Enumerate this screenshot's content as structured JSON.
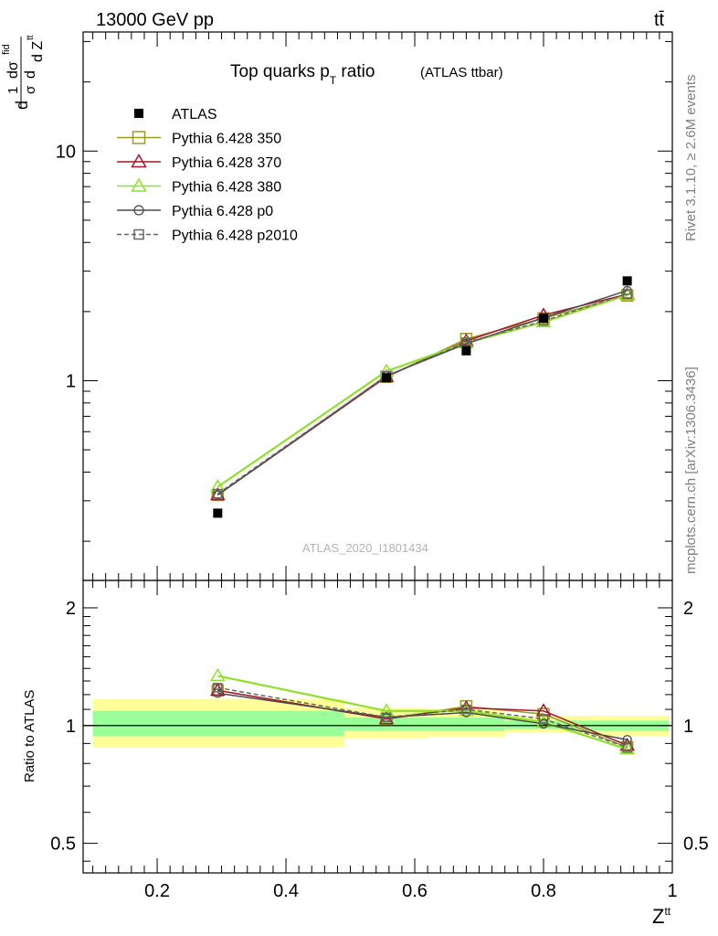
{
  "header": {
    "left": "13000 GeV pp",
    "right": "tt̄"
  },
  "side": {
    "rivet": "Rivet 3.1.10, ≥ 2.6M events",
    "mcplots": "mcplots.cern.ch [arXiv:1306.3436]"
  },
  "chart_data": [
    {
      "type": "scatter",
      "title_main": "Top quarks p",
      "title_sub": "T",
      "title_main2": " ratio",
      "title_small": "(ATLAS ttbar)",
      "watermark": "ATLAS_2020_I1801434",
      "ylabel": "d¹/σ dσ^fid / d Z^tt",
      "ylabel_parts": {
        "num_left": "1",
        "num_mid": "dσ",
        "fid": "fid",
        "den_left": "σ",
        "den_mid": "d Z",
        "tt": "tt",
        "d1": "d",
        "d2": "d"
      },
      "yscale": "log",
      "ylim": [
        0.135,
        33
      ],
      "xlim": [
        0.085,
        1.0
      ],
      "y_tick_labels": [
        "1",
        "10"
      ],
      "y_ticks": [
        1,
        10
      ],
      "legend_position": "top-left",
      "series": [
        {
          "name": "ATLAS",
          "marker": "filled-square",
          "color": "#000000",
          "x": [
            0.294,
            0.556,
            0.68,
            0.8,
            0.93
          ],
          "y": [
            0.265,
            1.03,
            1.35,
            1.87,
            2.72
          ]
        },
        {
          "name": "Pythia 6.428 350",
          "marker": "open-square",
          "color": "#9a9a22",
          "x": [
            0.294,
            0.556,
            0.68,
            0.8,
            0.93
          ],
          "y": [
            0.318,
            1.04,
            1.52,
            1.87,
            2.35
          ]
        },
        {
          "name": "Pythia 6.428 370",
          "marker": "open-triangle",
          "color": "#a3172b",
          "x": [
            0.294,
            0.556,
            0.68,
            0.8,
            0.93
          ],
          "y": [
            0.318,
            1.04,
            1.49,
            1.93,
            2.38
          ]
        },
        {
          "name": "Pythia 6.428 380",
          "marker": "open-triangle",
          "color": "#8fe02b",
          "x": [
            0.294,
            0.556,
            0.68,
            0.8,
            0.93
          ],
          "y": [
            0.345,
            1.1,
            1.46,
            1.8,
            2.36
          ]
        },
        {
          "name": "Pythia 6.428 p0",
          "marker": "open-circle",
          "color": "#4b4b4b",
          "x": [
            0.294,
            0.556,
            0.68,
            0.8,
            0.93
          ],
          "y": [
            0.318,
            1.05,
            1.45,
            1.88,
            2.47
          ]
        },
        {
          "name": "Pythia 6.428 p2010",
          "marker": "open-square-dashed",
          "color": "#666666",
          "x": [
            0.294,
            0.556,
            0.68,
            0.8,
            0.93
          ],
          "y": [
            0.322,
            1.05,
            1.47,
            1.82,
            2.39
          ]
        }
      ]
    },
    {
      "type": "line",
      "ylabel": "Ratio to ATLAS",
      "xlabel": "Z",
      "xlabel_sup": "tt",
      "yscale": "log",
      "ylim": [
        0.42,
        2.35
      ],
      "xlim": [
        0.085,
        1.0
      ],
      "x_tick_labels": [
        "0.2",
        "0.4",
        "0.6",
        "0.8",
        "1"
      ],
      "x_ticks": [
        0.2,
        0.4,
        0.6,
        0.8,
        1.0
      ],
      "y_tick_labels": [
        "0.5",
        "1",
        "2"
      ],
      "y_ticks": [
        0.5,
        1,
        2
      ],
      "bands": [
        {
          "x": [
            0.1,
            0.49
          ],
          "inner": [
            0.94,
            1.09
          ],
          "outer": [
            0.88,
            1.17
          ]
        },
        {
          "x": [
            0.49,
            0.62
          ],
          "inner": [
            0.97,
            1.05
          ],
          "outer": [
            0.925,
            1.11
          ]
        },
        {
          "x": [
            0.62,
            0.74
          ],
          "inner": [
            0.97,
            1.05
          ],
          "outer": [
            0.935,
            1.1
          ]
        },
        {
          "x": [
            0.74,
            0.86
          ],
          "inner": [
            0.98,
            1.03
          ],
          "outer": [
            0.96,
            1.06
          ]
        },
        {
          "x": [
            0.86,
            0.995
          ],
          "inner": [
            0.97,
            1.03
          ],
          "outer": [
            0.94,
            1.06
          ]
        }
      ],
      "series": [
        {
          "name": "Pythia 6.428 350",
          "marker": "open-square",
          "color": "#9a9a22",
          "x": [
            0.294,
            0.556,
            0.68,
            0.8,
            0.93
          ],
          "y": [
            1.23,
            1.04,
            1.12,
            1.07,
            0.88
          ]
        },
        {
          "name": "Pythia 6.428 370",
          "marker": "open-triangle",
          "color": "#a3172b",
          "x": [
            0.294,
            0.556,
            0.68,
            0.8,
            0.93
          ],
          "y": [
            1.23,
            1.04,
            1.11,
            1.09,
            0.89
          ]
        },
        {
          "name": "Pythia 6.428 380",
          "marker": "open-triangle",
          "color": "#8fe02b",
          "x": [
            0.294,
            0.556,
            0.68,
            0.8,
            0.93
          ],
          "y": [
            1.34,
            1.09,
            1.09,
            1.02,
            0.87
          ]
        },
        {
          "name": "Pythia 6.428 p0",
          "marker": "open-circle",
          "color": "#4b4b4b",
          "x": [
            0.294,
            0.556,
            0.68,
            0.8,
            0.93
          ],
          "y": [
            1.21,
            1.05,
            1.08,
            1.01,
            0.92
          ]
        },
        {
          "name": "Pythia 6.428 p2010",
          "marker": "open-square-dashed",
          "color": "#666666",
          "x": [
            0.294,
            0.556,
            0.68,
            0.8,
            0.93
          ],
          "y": [
            1.25,
            1.05,
            1.1,
            1.04,
            0.88
          ]
        }
      ]
    }
  ]
}
